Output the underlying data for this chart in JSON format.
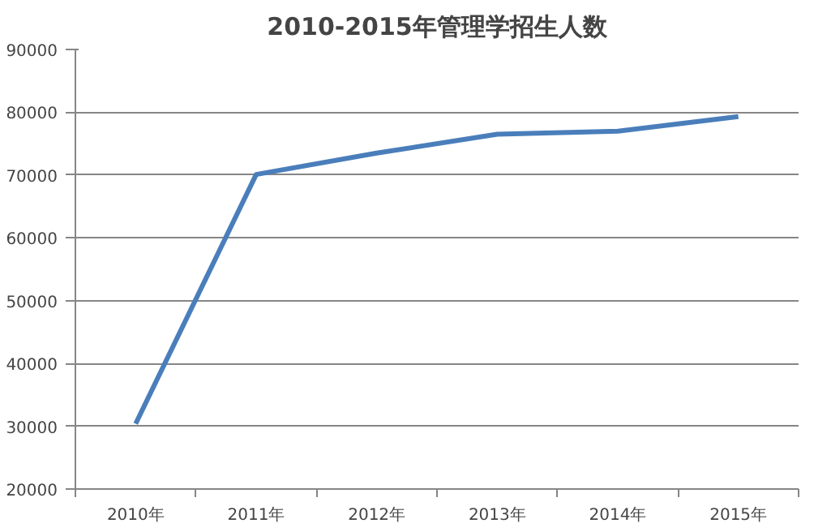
{
  "chart_data": {
    "type": "line",
    "title": "2010-2015年管理学招生人数",
    "categories": [
      "2010年",
      "2011年",
      "2012年",
      "2013年",
      "2014年",
      "2015年"
    ],
    "series": [
      {
        "color": "#4a7ebb",
        "values": [
          30400,
          70100,
          73500,
          76500,
          77000,
          79300
        ]
      }
    ],
    "ylim": [
      20000,
      90000
    ],
    "yticks": [
      20000,
      30000,
      40000,
      50000,
      60000,
      70000,
      80000,
      90000
    ],
    "grid": "y",
    "marker": "none",
    "line_style": "solid"
  }
}
